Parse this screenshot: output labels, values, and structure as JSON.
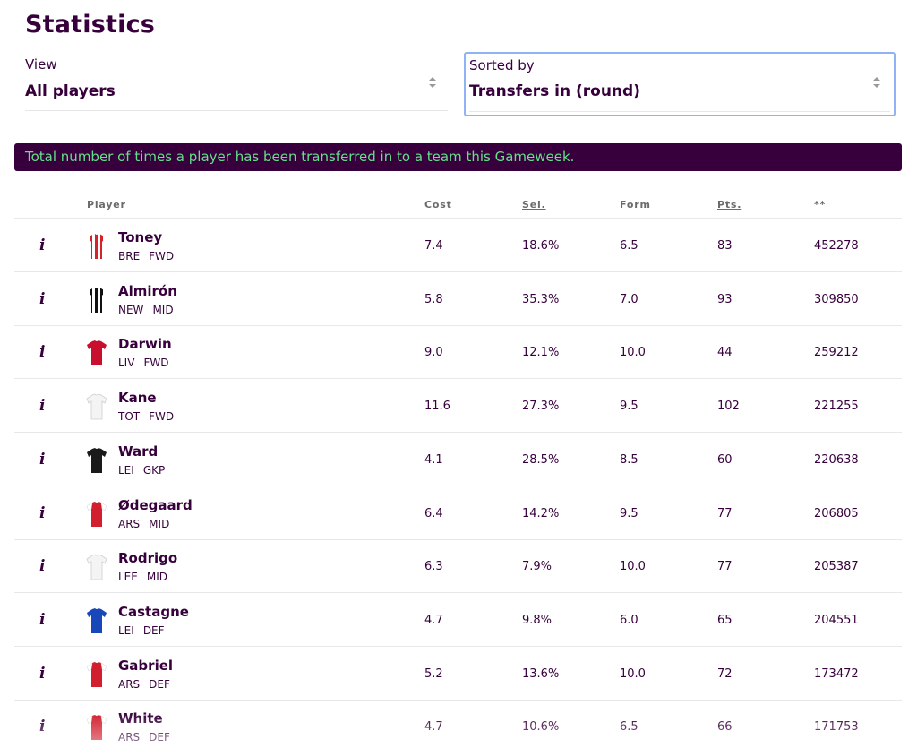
{
  "page": {
    "title": "Statistics"
  },
  "filters": {
    "view": {
      "label": "View",
      "value": "All players"
    },
    "sort": {
      "label": "Sorted by",
      "value": "Transfers in (round)"
    }
  },
  "banner": "Total number of times a player has been transferred in to a team this Gameweek.",
  "table": {
    "headers": {
      "player": "Player",
      "cost": "Cost",
      "sel": "Sel.",
      "form": "Form",
      "pts": "Pts.",
      "value": "**"
    },
    "rows": [
      {
        "name": "Toney",
        "team": "BRE",
        "pos": "FWD",
        "cost": "7.4",
        "sel": "18.6%",
        "form": "6.5",
        "pts": "83",
        "value": "452278",
        "shirt": "stripes-red-white"
      },
      {
        "name": "Almirón",
        "team": "NEW",
        "pos": "MID",
        "cost": "5.8",
        "sel": "35.3%",
        "form": "7.0",
        "pts": "93",
        "value": "309850",
        "shirt": "stripes-black-white"
      },
      {
        "name": "Darwin",
        "team": "LIV",
        "pos": "FWD",
        "cost": "9.0",
        "sel": "12.1%",
        "form": "10.0",
        "pts": "44",
        "value": "259212",
        "shirt": "red"
      },
      {
        "name": "Kane",
        "team": "TOT",
        "pos": "FWD",
        "cost": "11.6",
        "sel": "27.3%",
        "form": "9.5",
        "pts": "102",
        "value": "221255",
        "shirt": "white"
      },
      {
        "name": "Ward",
        "team": "LEI",
        "pos": "GKP",
        "cost": "4.1",
        "sel": "28.5%",
        "form": "8.5",
        "pts": "60",
        "value": "220638",
        "shirt": "black"
      },
      {
        "name": "Ødegaard",
        "team": "ARS",
        "pos": "MID",
        "cost": "6.4",
        "sel": "14.2%",
        "form": "9.5",
        "pts": "77",
        "value": "206805",
        "shirt": "red-white-sleeves"
      },
      {
        "name": "Rodrigo",
        "team": "LEE",
        "pos": "MID",
        "cost": "6.3",
        "sel": "7.9%",
        "form": "10.0",
        "pts": "77",
        "value": "205387",
        "shirt": "white"
      },
      {
        "name": "Castagne",
        "team": "LEI",
        "pos": "DEF",
        "cost": "4.7",
        "sel": "9.8%",
        "form": "6.0",
        "pts": "65",
        "value": "204551",
        "shirt": "blue"
      },
      {
        "name": "Gabriel",
        "team": "ARS",
        "pos": "DEF",
        "cost": "5.2",
        "sel": "13.6%",
        "form": "10.0",
        "pts": "72",
        "value": "173472",
        "shirt": "red-white-sleeves"
      },
      {
        "name": "White",
        "team": "ARS",
        "pos": "DEF",
        "cost": "4.7",
        "sel": "10.6%",
        "form": "6.5",
        "pts": "66",
        "value": "171753",
        "shirt": "red-white-sleeves"
      }
    ]
  },
  "colors": {
    "brand": "#37003c",
    "banner_text": "#63e08a",
    "focus": "#8fb3f5"
  },
  "icons": {
    "info": "info-icon",
    "sort_arrows": "sort-arrows-icon"
  }
}
